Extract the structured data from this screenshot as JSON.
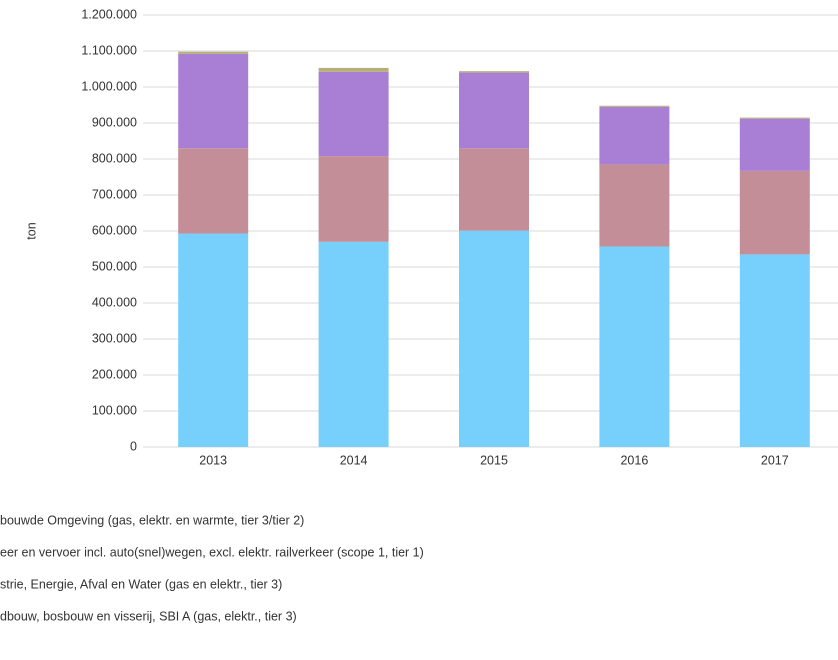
{
  "chart_data": {
    "type": "stacked-bar",
    "ylabel": "ton",
    "categories": [
      "2013",
      "2014",
      "2015",
      "2016",
      "2017"
    ],
    "series": [
      {
        "name": "bouwde Omgeving (gas, elektr. en warmte, tier 3/tier 2)",
        "color": "#77d0fb",
        "values": [
          593000,
          570000,
          601000,
          557000,
          535000
        ]
      },
      {
        "name": "eer en vervoer incl. auto(snel)wegen, excl. elektr. railverkeer (scope 1, tier 1)",
        "color": "#c48e98",
        "values": [
          237000,
          238000,
          229000,
          228000,
          232000
        ]
      },
      {
        "name": "strie, Energie, Afval en Water (gas en elektr., tier 3)",
        "color": "#a97fd6",
        "values": [
          262000,
          234000,
          210000,
          160000,
          145000
        ]
      },
      {
        "name": "dbouw, bosbouw en visserij, SBI A (gas, elektr., tier 3)",
        "color": "#b5b07a",
        "values": [
          6000,
          11000,
          4000,
          3000,
          3000
        ]
      }
    ],
    "ylim": [
      0,
      1200000
    ],
    "yticks": [
      0,
      {
        "value": 100000,
        "label": "100.000"
      },
      {
        "value": 200000,
        "label": "200.000"
      },
      {
        "value": 300000,
        "label": "300.000"
      },
      {
        "value": 400000,
        "label": "400.000"
      },
      {
        "value": 500000,
        "label": "500.000"
      },
      {
        "value": 600000,
        "label": "600.000"
      },
      {
        "value": 700000,
        "label": "700.000"
      },
      {
        "value": 800000,
        "label": "800.000"
      },
      {
        "value": 900000,
        "label": "900.000"
      },
      {
        "value": 1000000,
        "label": "1.000.000"
      },
      {
        "value": 1100000,
        "label": "1.100.000"
      },
      {
        "value": 1200000,
        "label": "1.200.000"
      }
    ],
    "grid": true
  }
}
